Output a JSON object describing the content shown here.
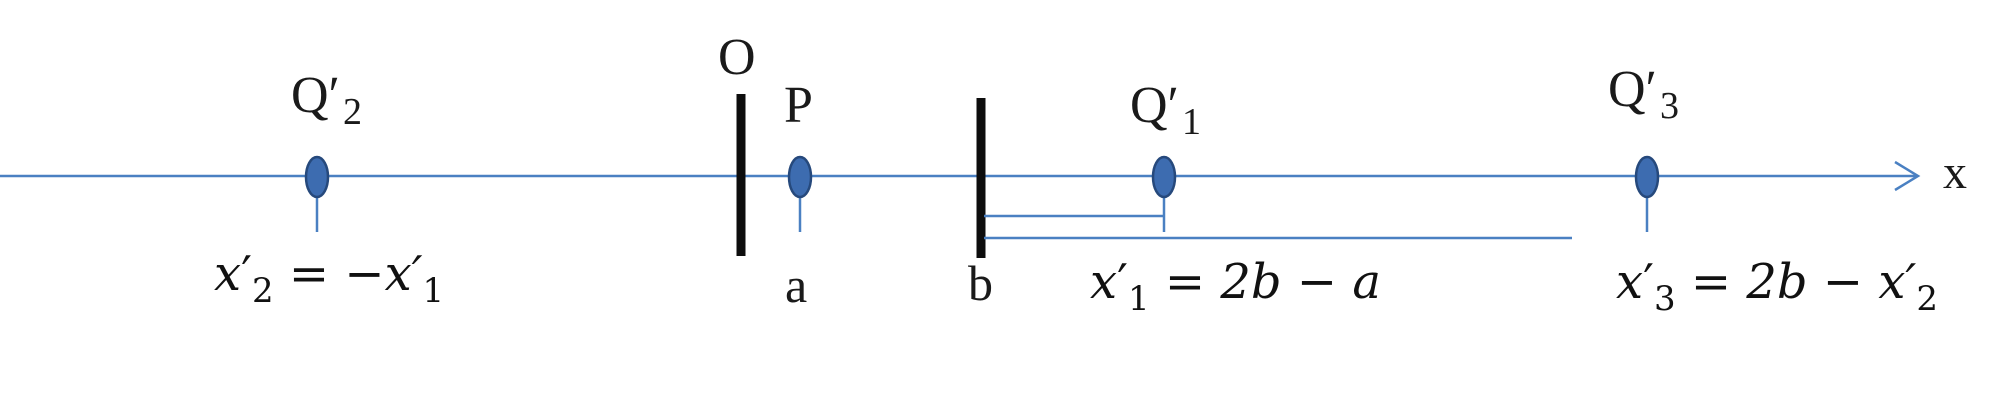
{
  "colors": {
    "axis": "#4a80c2",
    "point_fill": "#3d6cb0",
    "point_stroke": "#26497c",
    "mirror": "#0d0d0d",
    "text": "#111111"
  },
  "axis": {
    "label": "x"
  },
  "mirrors": {
    "origin_label": "O",
    "b_label": "b"
  },
  "points": {
    "q2": {
      "label_base": "Q′",
      "label_sub": "2",
      "equation": {
        "var": "x",
        "prime": "′",
        "sub": "2",
        "rhs": " = −x′",
        "rhs_sub": "1"
      }
    },
    "p": {
      "label": "P",
      "coord_label": "a"
    },
    "q1": {
      "label_base": "Q′",
      "label_sub": "1",
      "equation": {
        "var": "x",
        "prime": "′",
        "sub": "1",
        "rhs": " = 2b − a"
      }
    },
    "q3": {
      "label_base": "Q′",
      "label_sub": "3",
      "equation": {
        "var": "x",
        "prime": "′",
        "sub": "3",
        "rhs": " = 2b − x′",
        "rhs_sub": "2"
      }
    }
  }
}
